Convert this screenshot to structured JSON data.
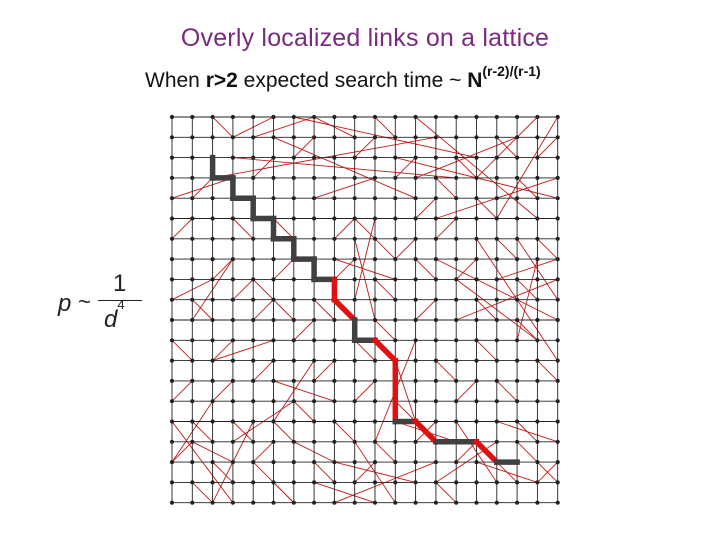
{
  "title": "Overly localized links on a lattice",
  "subtitle": {
    "lead": "When ",
    "condition": "r>2",
    "middle": "  expected search time ~ ",
    "base": "N",
    "exponent": "(r-2)/(r-1)"
  },
  "formula": {
    "variable": "p",
    "relation": "~",
    "numerator": "1",
    "den_base": "d",
    "den_exp": "4"
  },
  "colors": {
    "grid": "#222222",
    "link": "#c41a1a",
    "path_gray": "#404040",
    "path_red": "#e01010",
    "title": "#7a2a80"
  },
  "lattice": {
    "size": 20,
    "links": [
      [
        0,
        6,
        1,
        5
      ],
      [
        0,
        9,
        2,
        8
      ],
      [
        0,
        11,
        1,
        12
      ],
      [
        0,
        14,
        1,
        13
      ],
      [
        0,
        17,
        1,
        16
      ],
      [
        1,
        4,
        2,
        3
      ],
      [
        1,
        9,
        2,
        10
      ],
      [
        1,
        15,
        2,
        16
      ],
      [
        1,
        18,
        2,
        19
      ],
      [
        2,
        0,
        3,
        1
      ],
      [
        2,
        8,
        3,
        7
      ],
      [
        2,
        12,
        3,
        11
      ],
      [
        2,
        14,
        3,
        13
      ],
      [
        2,
        17,
        3,
        18
      ],
      [
        3,
        1,
        5,
        0
      ],
      [
        3,
        5,
        4,
        6
      ],
      [
        3,
        9,
        4,
        8
      ],
      [
        3,
        15,
        4,
        16
      ],
      [
        4,
        1,
        7,
        0
      ],
      [
        4,
        3,
        5,
        2
      ],
      [
        4,
        10,
        5,
        9
      ],
      [
        4,
        13,
        5,
        12
      ],
      [
        4,
        17,
        5,
        16
      ],
      [
        5,
        5,
        6,
        6
      ],
      [
        5,
        8,
        6,
        7
      ],
      [
        5,
        15,
        6,
        16
      ],
      [
        5,
        18,
        6,
        19
      ],
      [
        6,
        2,
        7,
        1
      ],
      [
        6,
        11,
        7,
        10
      ],
      [
        6,
        14,
        7,
        15
      ],
      [
        7,
        4,
        10,
        3
      ],
      [
        7,
        9,
        8,
        10
      ],
      [
        7,
        13,
        8,
        12
      ],
      [
        7,
        17,
        8,
        18
      ],
      [
        7,
        0,
        9,
        1
      ],
      [
        8,
        6,
        9,
        5
      ],
      [
        8,
        8,
        9,
        7
      ],
      [
        8,
        15,
        9,
        16
      ],
      [
        9,
        2,
        10,
        1
      ],
      [
        9,
        5,
        11,
        7
      ],
      [
        9,
        11,
        10,
        12
      ],
      [
        9,
        14,
        10,
        13
      ],
      [
        9,
        18,
        10,
        17
      ],
      [
        10,
        0,
        11,
        1
      ],
      [
        10,
        8,
        11,
        9
      ],
      [
        10,
        10,
        11,
        11
      ],
      [
        10,
        16,
        11,
        17
      ],
      [
        11,
        3,
        12,
        2
      ],
      [
        11,
        7,
        12,
        6
      ],
      [
        11,
        14,
        12,
        15
      ],
      [
        12,
        5,
        13,
        4
      ],
      [
        12,
        7,
        13,
        8
      ],
      [
        12,
        10,
        13,
        9
      ],
      [
        12,
        16,
        13,
        15
      ],
      [
        13,
        3,
        14,
        4
      ],
      [
        13,
        6,
        14,
        5
      ],
      [
        13,
        12,
        14,
        13
      ],
      [
        13,
        18,
        14,
        19
      ],
      [
        14,
        2,
        15,
        3
      ],
      [
        14,
        8,
        15,
        7
      ],
      [
        14,
        14,
        15,
        13
      ],
      [
        14,
        17,
        15,
        16
      ],
      [
        15,
        4,
        16,
        5
      ],
      [
        15,
        9,
        16,
        10
      ],
      [
        15,
        11,
        16,
        12
      ],
      [
        16,
        1,
        17,
        2
      ],
      [
        16,
        6,
        17,
        7
      ],
      [
        16,
        13,
        17,
        14
      ],
      [
        16,
        17,
        17,
        18
      ],
      [
        17,
        3,
        18,
        4
      ],
      [
        17,
        8,
        18,
        9
      ],
      [
        17,
        10,
        18,
        11
      ],
      [
        17,
        15,
        18,
        16
      ],
      [
        18,
        2,
        19,
        1
      ],
      [
        18,
        6,
        19,
        7
      ],
      [
        18,
        12,
        19,
        13
      ],
      [
        18,
        18,
        19,
        17
      ],
      [
        6,
        0,
        15,
        2
      ],
      [
        3,
        2,
        14,
        3
      ],
      [
        5,
        1,
        12,
        4
      ],
      [
        2,
        3,
        13,
        1
      ],
      [
        0,
        4,
        3,
        3
      ],
      [
        12,
        0,
        18,
        5
      ],
      [
        18,
        0,
        15,
        3
      ],
      [
        19,
        0,
        16,
        5
      ],
      [
        11,
        2,
        19,
        4
      ],
      [
        12,
        3,
        17,
        1
      ],
      [
        13,
        5,
        19,
        3
      ],
      [
        9,
        6,
        10,
        10
      ],
      [
        10,
        5,
        9,
        9
      ],
      [
        8,
        7,
        11,
        8
      ],
      [
        13,
        7,
        19,
        10
      ],
      [
        14,
        8,
        18,
        11
      ],
      [
        17,
        6,
        19,
        9
      ],
      [
        15,
        6,
        19,
        12
      ],
      [
        16,
        8,
        19,
        7
      ],
      [
        18,
        7,
        17,
        11
      ],
      [
        14,
        10,
        19,
        8
      ],
      [
        4,
        8,
        6,
        10
      ],
      [
        5,
        11,
        2,
        12
      ],
      [
        3,
        7,
        1,
        10
      ],
      [
        7,
        12,
        5,
        15
      ],
      [
        5,
        13,
        8,
        14
      ],
      [
        6,
        14,
        3,
        16
      ],
      [
        11,
        12,
        12,
        15
      ],
      [
        12,
        11,
        10,
        16
      ],
      [
        11,
        15,
        14,
        16
      ],
      [
        2,
        14,
        0,
        17
      ],
      [
        1,
        16,
        3,
        17
      ],
      [
        4,
        15,
        2,
        19
      ],
      [
        0,
        15,
        3,
        19
      ],
      [
        8,
        17,
        12,
        18
      ],
      [
        9,
        16,
        11,
        19
      ],
      [
        7,
        18,
        10,
        19
      ],
      [
        8,
        19,
        13,
        17
      ],
      [
        14,
        15,
        16,
        18
      ],
      [
        16,
        16,
        13,
        18
      ],
      [
        6,
        16,
        8,
        17
      ],
      [
        4,
        17,
        6,
        19
      ],
      [
        15,
        17,
        18,
        18
      ],
      [
        17,
        16,
        19,
        18
      ],
      [
        16,
        15,
        19,
        16
      ]
    ],
    "path": [
      [
        2,
        2,
        "g"
      ],
      [
        2,
        3,
        "g"
      ],
      [
        3,
        3,
        "g"
      ],
      [
        3,
        4,
        "g"
      ],
      [
        4,
        4,
        "g"
      ],
      [
        4,
        5,
        "g"
      ],
      [
        5,
        5,
        "g"
      ],
      [
        5,
        6,
        "g"
      ],
      [
        6,
        6,
        "g"
      ],
      [
        6,
        7,
        "g"
      ],
      [
        7,
        7,
        "g"
      ],
      [
        7,
        8,
        "g"
      ],
      [
        8,
        8,
        "g"
      ],
      [
        8,
        9,
        "r"
      ],
      [
        9,
        10,
        "r"
      ],
      [
        9,
        11,
        "g"
      ],
      [
        10,
        11,
        "g"
      ],
      [
        11,
        12,
        "r"
      ],
      [
        11,
        15,
        "r"
      ],
      [
        12,
        15,
        "g"
      ],
      [
        13,
        16,
        "r"
      ],
      [
        15,
        16,
        "g"
      ],
      [
        16,
        17,
        "r"
      ],
      [
        17,
        17,
        "g"
      ]
    ]
  }
}
